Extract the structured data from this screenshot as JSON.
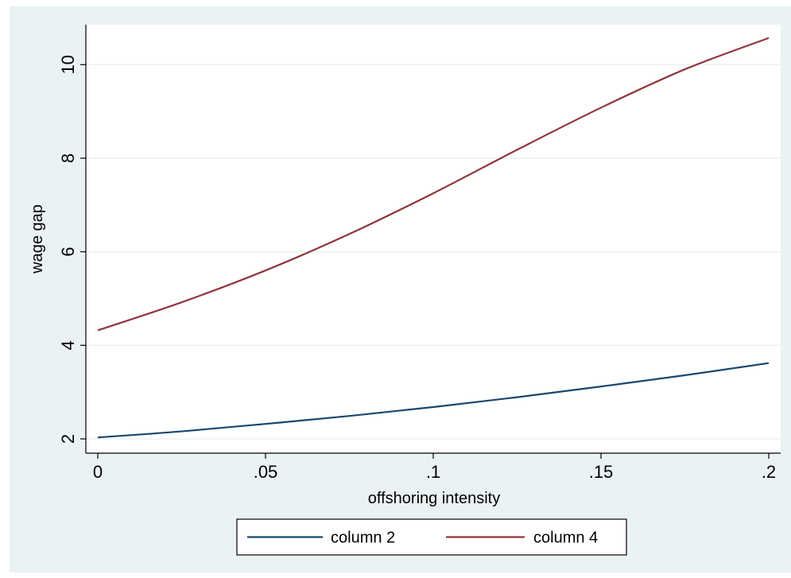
{
  "chart_data": {
    "type": "line",
    "title": "",
    "xlabel": "offshoring intensity",
    "ylabel": "wage gap",
    "xlim": [
      0,
      0.2
    ],
    "ylim": [
      2,
      10.6
    ],
    "xticks": [
      {
        "value": 0,
        "label": "0"
      },
      {
        "value": 0.05,
        "label": ".05"
      },
      {
        "value": 0.1,
        "label": ".1"
      },
      {
        "value": 0.15,
        "label": ".15"
      },
      {
        "value": 0.2,
        "label": ".2"
      }
    ],
    "yticks": [
      {
        "value": 2,
        "label": "2"
      },
      {
        "value": 4,
        "label": "4"
      },
      {
        "value": 6,
        "label": "6"
      },
      {
        "value": 8,
        "label": "8"
      },
      {
        "value": 10,
        "label": "10"
      }
    ],
    "grid": true,
    "legend_position": "bottom",
    "colors": {
      "background_outer": "#eaf2f3",
      "plot_bg": "#ffffff",
      "grid": "#eaf2f3",
      "axis": "#000000"
    },
    "series": [
      {
        "name": "column 2",
        "color": "#1a476f",
        "x": [
          0,
          0.025,
          0.05,
          0.075,
          0.1,
          0.125,
          0.15,
          0.175,
          0.2
        ],
        "values": [
          2.03,
          2.16,
          2.32,
          2.49,
          2.68,
          2.89,
          3.12,
          3.36,
          3.62
        ]
      },
      {
        "name": "column 4",
        "color": "#90353b",
        "x": [
          0,
          0.025,
          0.05,
          0.075,
          0.1,
          0.125,
          0.15,
          0.175,
          0.2
        ],
        "values": [
          4.32,
          4.92,
          5.6,
          6.38,
          7.25,
          8.18,
          9.08,
          9.9,
          10.57
        ]
      }
    ]
  }
}
